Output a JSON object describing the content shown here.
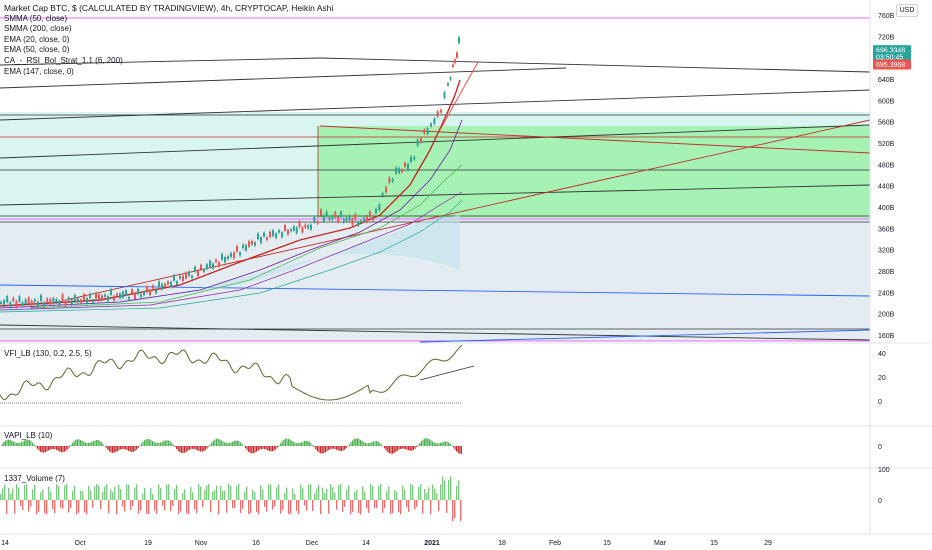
{
  "header": {
    "title": "Market Cap BTC, $ (CALCULATED BY TRADINGVIEW), 4h, CRYPTOCAP, Heikin Ashi",
    "currency": "USD"
  },
  "indicators": [
    "SMMA (50, close)",
    "SMMA (200, close)",
    "EMA (20, close, 0)",
    "EMA (50, close, 0)",
    "CA_-_RSI_Bol_Strat_1.1 (6, 200)",
    "EMA (147, close, 0)"
  ],
  "price_axis": {
    "labels": [
      "760B",
      "720B",
      "640B",
      "600B",
      "560B",
      "520B",
      "480B",
      "440B",
      "400B",
      "360B",
      "320B",
      "280B",
      "240B",
      "200B",
      "160B"
    ],
    "values": [
      760,
      720,
      640,
      600,
      560,
      520,
      480,
      440,
      400,
      360,
      320,
      280,
      240,
      200,
      160
    ],
    "badges": [
      {
        "text": "696.3348",
        "value": 696,
        "color": "#26a69a"
      },
      {
        "text": "03:50:45",
        "value": 683,
        "color": "#26a69a"
      },
      {
        "text": "695.3968",
        "value": 669,
        "color": "#ef5350"
      }
    ]
  },
  "panes": {
    "vfi": {
      "label": "VFI_LB (130, 0.2, 2.5, 5)",
      "ticks": [
        "40",
        "20",
        "0"
      ]
    },
    "vapi": {
      "label": "VAPI_LB (10)",
      "ticks": [
        "0"
      ]
    },
    "volume": {
      "label": "1337_Volume (7)",
      "ticks": [
        "100",
        "0"
      ]
    }
  },
  "time_axis": [
    "14",
    "Oct",
    "19",
    "Nov",
    "16",
    "Dec",
    "14",
    "2021",
    "18",
    "Feb",
    "15",
    "Mar",
    "15",
    "29"
  ],
  "colors": {
    "up": "#26a69a",
    "down": "#ef5350",
    "hist_up": "#4caf50",
    "hist_down": "#c62828",
    "green_zone": "#a5f2b4",
    "teal_zone": "#d8f5f0",
    "grey_zone": "#e3edf1",
    "magenta": "#e040fb",
    "blue": "#2962ff"
  }
}
